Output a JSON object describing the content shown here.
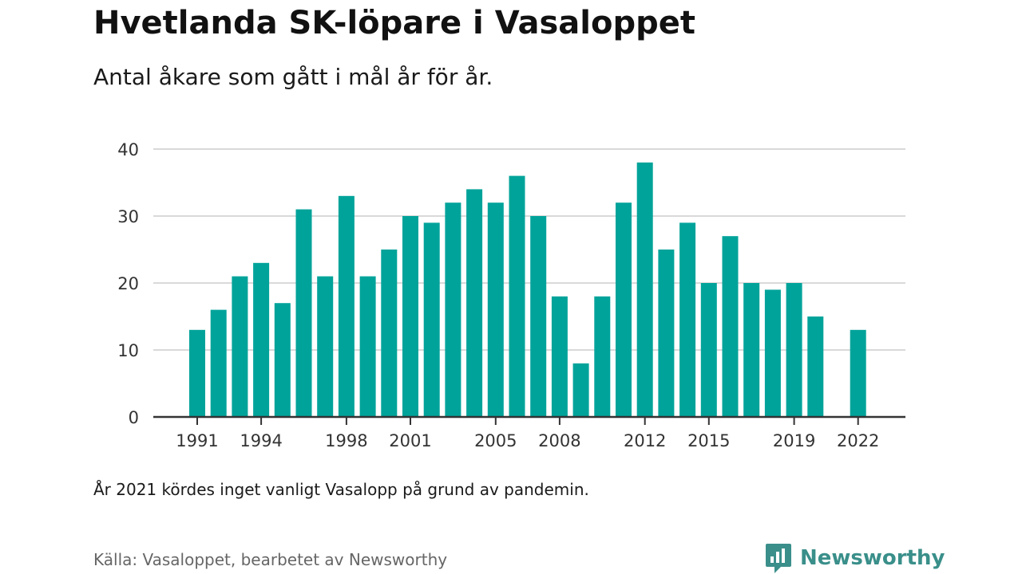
{
  "title": "Hvetlanda SK-löpare i Vasaloppet",
  "subtitle": "Antal åkare som gått i mål år för år.",
  "note": "År 2021 kördes inget vanligt Vasalopp på grund av pandemin.",
  "source": "Källa: Vasaloppet, bearbetet av Newsworthy",
  "brand": "Newsworthy",
  "colors": {
    "bar": "#00a39a",
    "grid": "#d9d9d9",
    "axis": "#333333",
    "brand": "#3a8f8a"
  },
  "chart_data": {
    "type": "bar",
    "x": [
      1991,
      1992,
      1993,
      1994,
      1995,
      1996,
      1997,
      1998,
      1999,
      2000,
      2001,
      2002,
      2003,
      2004,
      2005,
      2006,
      2007,
      2008,
      2009,
      2010,
      2011,
      2012,
      2013,
      2014,
      2015,
      2016,
      2017,
      2018,
      2019,
      2020,
      2021,
      2022
    ],
    "values": [
      13,
      16,
      21,
      23,
      17,
      31,
      21,
      33,
      21,
      25,
      30,
      29,
      32,
      34,
      32,
      36,
      30,
      18,
      8,
      18,
      32,
      38,
      25,
      29,
      20,
      27,
      20,
      19,
      20,
      15,
      null,
      13
    ],
    "x_tick_labels": [
      "1991",
      "1994",
      "1998",
      "2001",
      "2005",
      "2008",
      "2012",
      "2015",
      "2019",
      "2022"
    ],
    "y_ticks": [
      0,
      10,
      20,
      30,
      40
    ],
    "ylim": [
      0,
      40
    ],
    "grid": true,
    "legend": "none"
  }
}
